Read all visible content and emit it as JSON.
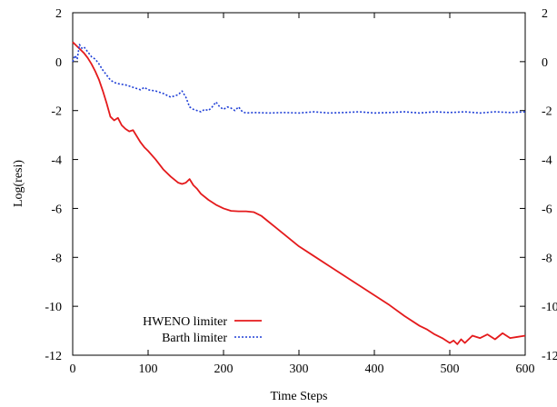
{
  "chart_data": {
    "type": "line",
    "xlabel": "Time Steps",
    "ylabel": "Log(resi)",
    "xlim": [
      0,
      600
    ],
    "ylim": [
      -12,
      2
    ],
    "x_ticks": [
      0,
      100,
      200,
      300,
      400,
      500,
      600
    ],
    "y_ticks": [
      -12,
      -10,
      -8,
      -6,
      -4,
      -2,
      0,
      2
    ],
    "x_tick_labels": [
      "0",
      "100",
      "200",
      "300",
      "400",
      "500",
      "600"
    ],
    "y_tick_labels": [
      "-12",
      "-10",
      "-8",
      "-6",
      "-4",
      "-2",
      "0",
      "2"
    ],
    "y2_tick_labels": [
      "-12",
      "-10",
      "-8",
      "-6",
      "-4",
      "-2",
      "0",
      "2"
    ],
    "legend_position": "bottom-left",
    "grid": false,
    "series": [
      {
        "name": "HWENO limiter",
        "color": "#e41a1c",
        "style": "solid",
        "x": [
          0,
          5,
          10,
          15,
          20,
          25,
          30,
          35,
          40,
          45,
          50,
          55,
          60,
          65,
          70,
          75,
          80,
          85,
          90,
          95,
          100,
          110,
          120,
          130,
          140,
          145,
          150,
          155,
          160,
          165,
          170,
          180,
          190,
          200,
          210,
          220,
          230,
          240,
          250,
          260,
          270,
          280,
          290,
          300,
          320,
          340,
          360,
          380,
          400,
          420,
          440,
          460,
          470,
          480,
          490,
          500,
          505,
          510,
          515,
          520,
          530,
          540,
          550,
          560,
          570,
          580,
          590,
          600
        ],
        "values": [
          0.8,
          0.65,
          0.5,
          0.35,
          0.15,
          -0.1,
          -0.4,
          -0.75,
          -1.2,
          -1.7,
          -2.25,
          -2.4,
          -2.3,
          -2.6,
          -2.75,
          -2.85,
          -2.8,
          -3.05,
          -3.3,
          -3.5,
          -3.65,
          -4.0,
          -4.4,
          -4.7,
          -4.95,
          -5.0,
          -4.95,
          -4.8,
          -5.05,
          -5.2,
          -5.4,
          -5.65,
          -5.85,
          -6.0,
          -6.1,
          -6.12,
          -6.12,
          -6.15,
          -6.3,
          -6.55,
          -6.8,
          -7.05,
          -7.3,
          -7.55,
          -7.95,
          -8.35,
          -8.75,
          -9.15,
          -9.55,
          -9.95,
          -10.4,
          -10.8,
          -10.95,
          -11.15,
          -11.3,
          -11.5,
          -11.4,
          -11.55,
          -11.35,
          -11.5,
          -11.2,
          -11.3,
          -11.15,
          -11.35,
          -11.1,
          -11.3,
          -11.25,
          -11.2
        ]
      },
      {
        "name": "Barth limiter",
        "color": "#1f3fd6",
        "style": "dotted",
        "x": [
          0,
          3,
          6,
          9,
          12,
          15,
          20,
          25,
          30,
          35,
          40,
          45,
          50,
          55,
          60,
          70,
          80,
          90,
          95,
          100,
          110,
          120,
          130,
          140,
          145,
          150,
          155,
          160,
          165,
          170,
          175,
          180,
          185,
          190,
          195,
          200,
          205,
          210,
          215,
          220,
          225,
          230,
          240,
          260,
          280,
          300,
          320,
          340,
          360,
          380,
          400,
          420,
          440,
          460,
          480,
          500,
          520,
          540,
          560,
          580,
          600
        ],
        "values": [
          0.0,
          0.25,
          0.1,
          0.7,
          0.55,
          0.6,
          0.4,
          0.2,
          0.1,
          -0.1,
          -0.35,
          -0.55,
          -0.75,
          -0.85,
          -0.9,
          -0.95,
          -1.05,
          -1.15,
          -1.05,
          -1.15,
          -1.2,
          -1.3,
          -1.45,
          -1.35,
          -1.2,
          -1.45,
          -1.85,
          -1.95,
          -2.0,
          -2.05,
          -1.95,
          -2.0,
          -1.85,
          -1.65,
          -1.85,
          -1.95,
          -1.85,
          -1.9,
          -2.0,
          -1.85,
          -2.05,
          -2.1,
          -2.08,
          -2.1,
          -2.08,
          -2.1,
          -2.05,
          -2.1,
          -2.08,
          -2.05,
          -2.1,
          -2.08,
          -2.05,
          -2.1,
          -2.05,
          -2.08,
          -2.05,
          -2.1,
          -2.05,
          -2.08,
          -2.05
        ]
      }
    ]
  }
}
